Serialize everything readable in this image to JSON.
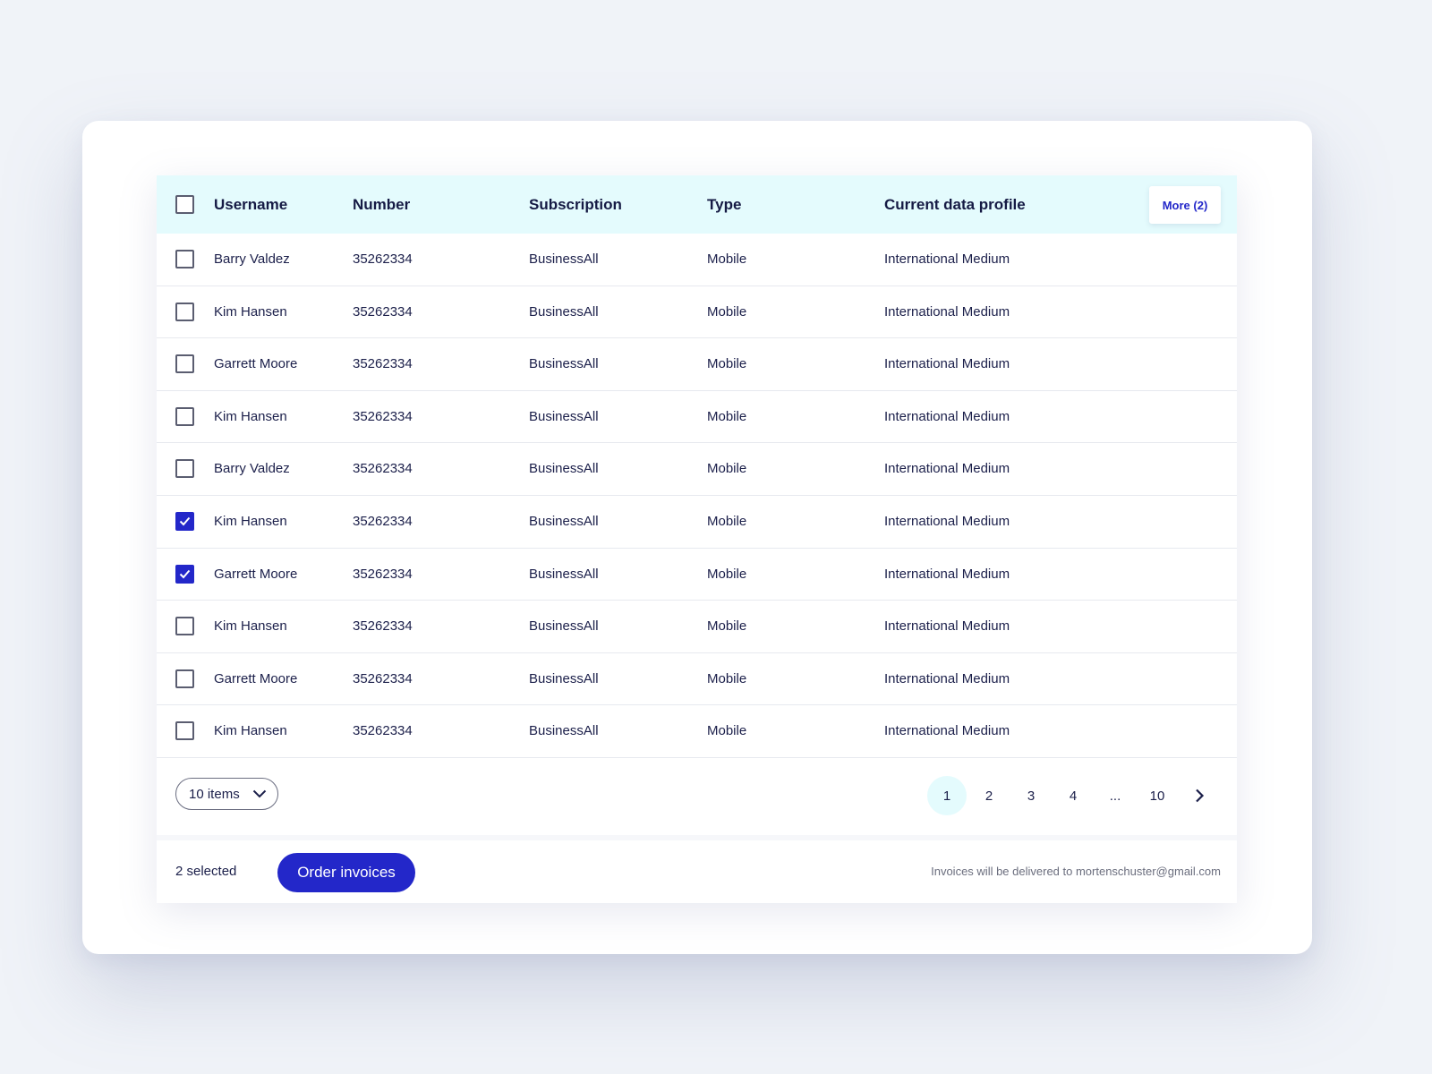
{
  "table": {
    "headers": {
      "username": "Username",
      "number": "Number",
      "subscription": "Subscription",
      "type": "Type",
      "profile": "Current data profile"
    },
    "more_label": "More (2)",
    "rows": [
      {
        "username": "Barry Valdez",
        "number": "35262334",
        "subscription": "BusinessAll",
        "type": "Mobile",
        "profile": "International Medium",
        "checked": false
      },
      {
        "username": "Kim Hansen",
        "number": "35262334",
        "subscription": "BusinessAll",
        "type": "Mobile",
        "profile": "International Medium",
        "checked": false
      },
      {
        "username": "Garrett Moore",
        "number": "35262334",
        "subscription": "BusinessAll",
        "type": "Mobile",
        "profile": "International Medium",
        "checked": false
      },
      {
        "username": "Kim Hansen",
        "number": "35262334",
        "subscription": "BusinessAll",
        "type": "Mobile",
        "profile": "International Medium",
        "checked": false
      },
      {
        "username": "Barry Valdez",
        "number": "35262334",
        "subscription": "BusinessAll",
        "type": "Mobile",
        "profile": "International Medium",
        "checked": false
      },
      {
        "username": "Kim Hansen",
        "number": "35262334",
        "subscription": "BusinessAll",
        "type": "Mobile",
        "profile": "International Medium",
        "checked": true
      },
      {
        "username": "Garrett Moore",
        "number": "35262334",
        "subscription": "BusinessAll",
        "type": "Mobile",
        "profile": "International Medium",
        "checked": true
      },
      {
        "username": "Kim Hansen",
        "number": "35262334",
        "subscription": "BusinessAll",
        "type": "Mobile",
        "profile": "International Medium",
        "checked": false
      },
      {
        "username": "Garrett Moore",
        "number": "35262334",
        "subscription": "BusinessAll",
        "type": "Mobile",
        "profile": "International Medium",
        "checked": false
      },
      {
        "username": "Kim Hansen",
        "number": "35262334",
        "subscription": "BusinessAll",
        "type": "Mobile",
        "profile": "International Medium",
        "checked": false
      }
    ]
  },
  "pagination": {
    "items_per_page": "10 items",
    "pages": [
      "1",
      "2",
      "3",
      "4",
      "...",
      "10"
    ],
    "active_page": "1"
  },
  "footer": {
    "selected_count": "2 selected",
    "order_label": "Order invoices",
    "delivery_note": "Invoices will be delivered to mortenschuster@gmail.com"
  },
  "colors": {
    "accent": "#2327c9",
    "header_bg": "#e4fbfd",
    "page_bg": "#f0f3f8"
  }
}
